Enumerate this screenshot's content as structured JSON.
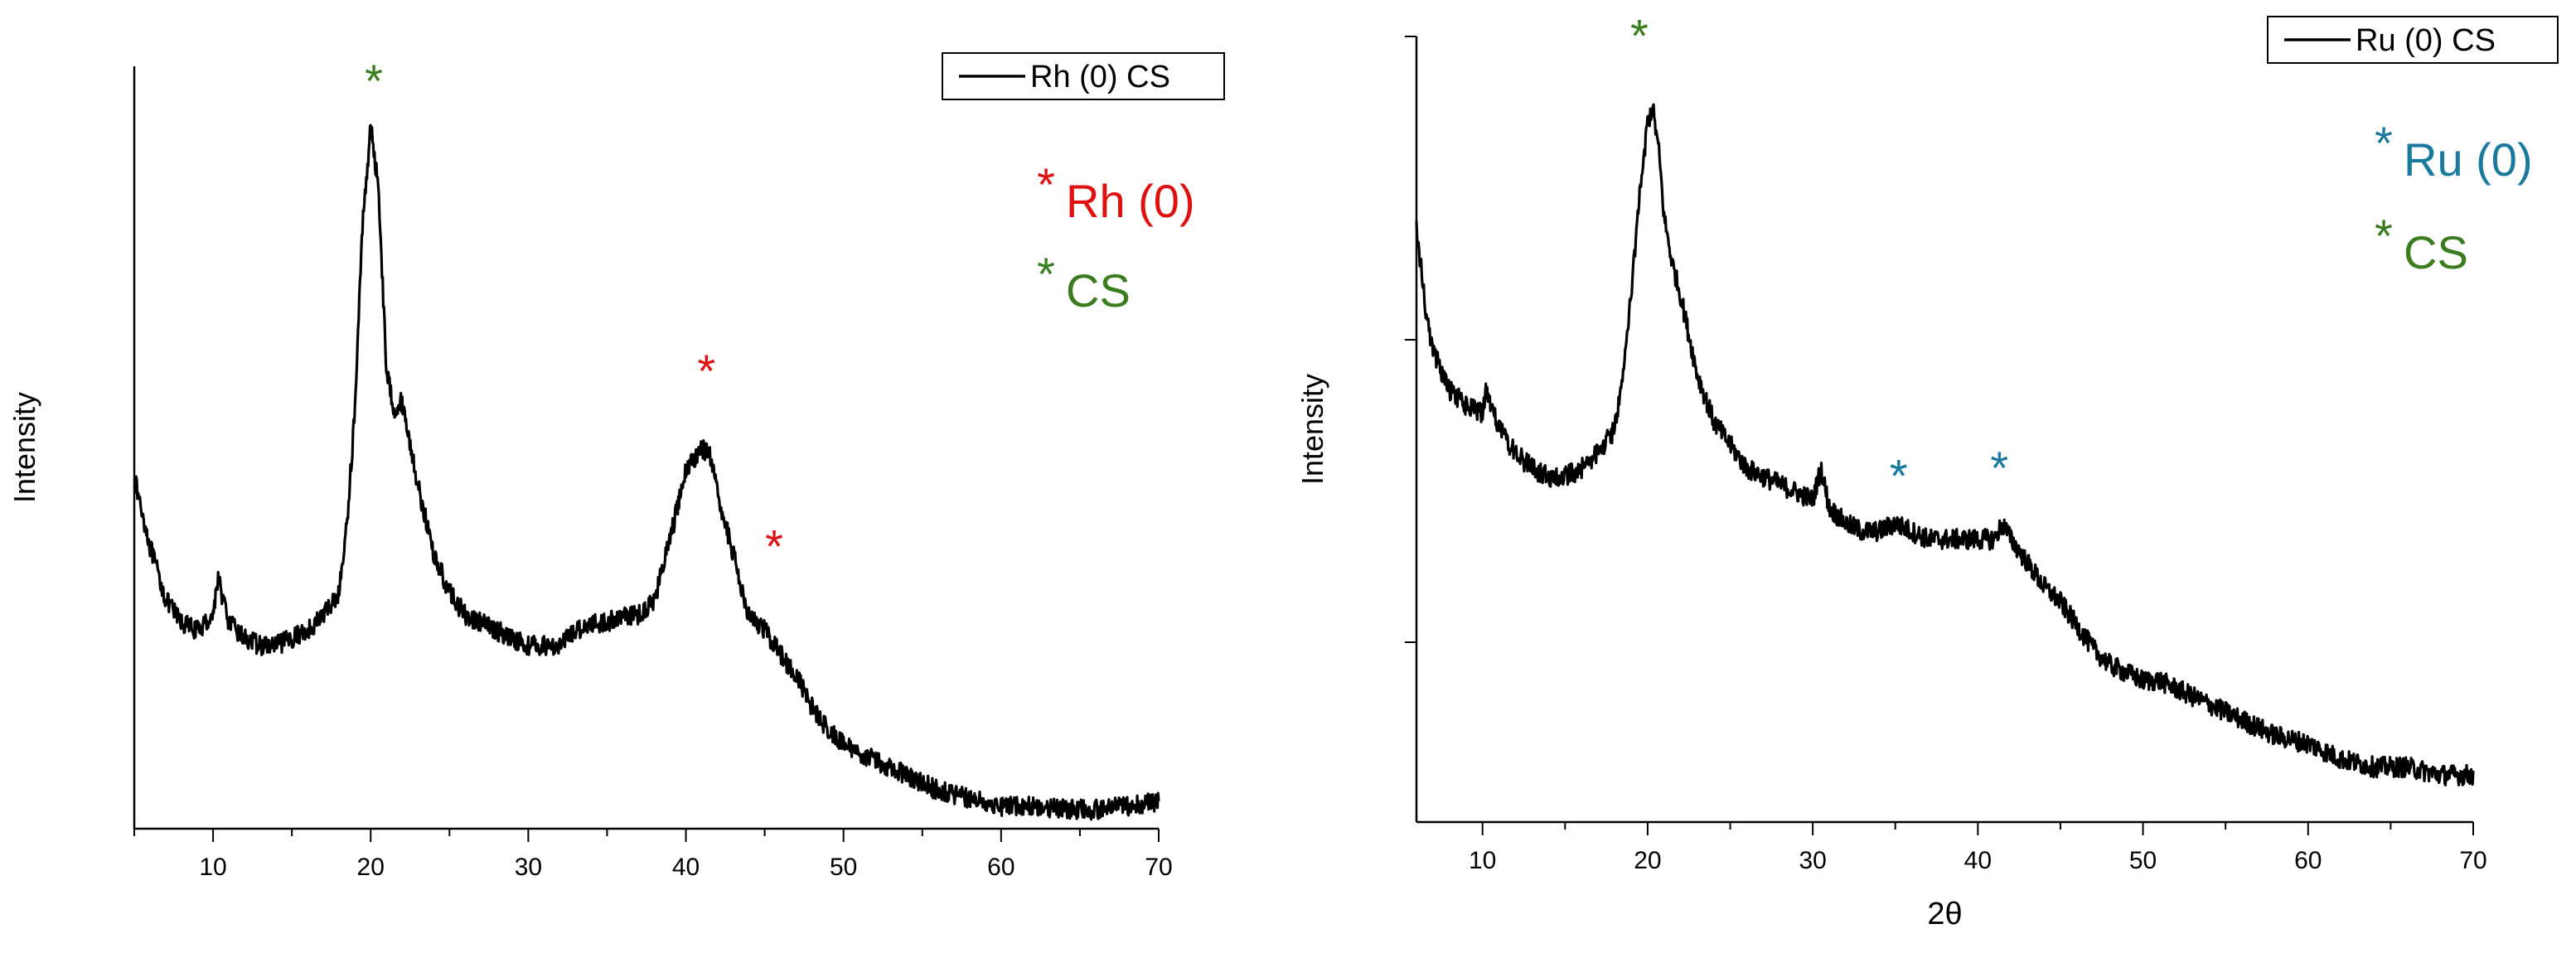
{
  "chart_data": [
    {
      "type": "line",
      "title": "",
      "xlabel": "",
      "ylabel": "Intensity",
      "xlim": [
        5,
        70
      ],
      "ylim": [
        0,
        100
      ],
      "xticks": [
        10,
        20,
        30,
        40,
        50,
        60,
        70
      ],
      "xtick_labels": [
        "10",
        "20",
        "30",
        "40",
        "50",
        "60",
        "70"
      ],
      "grid": false,
      "legend": {
        "position": "top-right",
        "entries": [
          "Rh (0) CS"
        ]
      },
      "series": [
        {
          "name": "Rh (0) CS",
          "color": "#000000",
          "x": [
            5,
            6,
            7,
            8,
            9,
            10,
            10.3,
            11,
            12,
            13,
            14,
            15,
            16,
            17,
            18,
            18.5,
            19,
            19.5,
            20,
            20.5,
            21,
            21.5,
            22,
            23,
            24,
            25,
            26,
            27,
            28,
            29,
            30,
            30.5,
            31,
            32,
            33,
            34,
            35,
            36,
            37,
            38,
            39,
            40,
            41,
            41.5,
            42,
            43,
            44,
            45,
            46,
            47,
            48,
            49,
            50,
            52,
            54,
            56,
            58,
            60,
            62,
            64,
            66,
            68,
            70
          ],
          "y": [
            46,
            37,
            30,
            27,
            26,
            28,
            33,
            27,
            25,
            24,
            24,
            25,
            26,
            28,
            31,
            40,
            55,
            80,
            92,
            84,
            60,
            55,
            56,
            45,
            36,
            31,
            28,
            27,
            26,
            25,
            24,
            24,
            24,
            24,
            26,
            27,
            27,
            28,
            28,
            30,
            38,
            47,
            50,
            49,
            44,
            36,
            28,
            26,
            23,
            20,
            16,
            13,
            11,
            9,
            7,
            5,
            4,
            3,
            3,
            2.5,
            2.5,
            3,
            3.5
          ]
        }
      ],
      "annotations": [
        {
          "text": "*",
          "x": 20.2,
          "y": 99,
          "color": "#3a7d1e"
        },
        {
          "text": "*",
          "x": 41.3,
          "y": 61,
          "color": "#e01010"
        },
        {
          "text": "*",
          "x": 45.6,
          "y": 38,
          "color": "#e01010"
        }
      ],
      "key": [
        {
          "star": "*",
          "label": "Rh (0)",
          "color": "#e01010"
        },
        {
          "star": "*",
          "label": "CS",
          "color": "#3a7d1e"
        }
      ]
    },
    {
      "type": "line",
      "title": "",
      "xlabel": "2θ",
      "ylabel": "Intensity",
      "xlim": [
        6,
        70
      ],
      "ylim": [
        0,
        100
      ],
      "xticks": [
        10,
        20,
        30,
        40,
        50,
        60,
        70
      ],
      "xtick_labels": [
        "10",
        "20",
        "30",
        "40",
        "50",
        "60",
        "70"
      ],
      "grid": false,
      "legend": {
        "position": "top-right",
        "entries": [
          "Ru (0) CS"
        ]
      },
      "series": [
        {
          "name": "Ru (0) CS",
          "color": "#000000",
          "x": [
            6,
            6.5,
            7,
            8,
            9,
            10,
            10.2,
            11,
            12,
            13,
            14,
            15,
            16,
            17,
            18,
            18.5,
            19,
            19.5,
            20,
            20.3,
            20.7,
            21,
            21.5,
            22,
            23,
            24,
            25,
            26,
            27,
            28,
            29,
            30,
            30.5,
            31,
            32,
            33,
            34,
            35,
            36,
            37,
            38,
            39,
            40,
            41,
            41.5,
            42,
            43,
            44,
            45,
            46,
            47,
            48,
            49,
            50,
            51,
            52,
            54,
            56,
            58,
            60,
            62,
            64,
            66,
            68,
            70
          ],
          "y": [
            76,
            66,
            60,
            55,
            53,
            52,
            55,
            50,
            47,
            45,
            44,
            44,
            45,
            47,
            50,
            57,
            67,
            80,
            89,
            91,
            85,
            77,
            71,
            67,
            57,
            51,
            48,
            45,
            44,
            43,
            42,
            41,
            45,
            40,
            38,
            37,
            37,
            38,
            37,
            36,
            36,
            36,
            36,
            36,
            38,
            36,
            33,
            30,
            28,
            25,
            22,
            20,
            19,
            18,
            18,
            17,
            15,
            13,
            11,
            10,
            8,
            7,
            7,
            6,
            6
          ]
        }
      ],
      "annotations": [
        {
          "text": "*",
          "x": 19.5,
          "y": 101,
          "color": "#3a7d1e"
        },
        {
          "text": "*",
          "x": 35.2,
          "y": 45,
          "color": "#1a7a9e"
        },
        {
          "text": "*",
          "x": 41.3,
          "y": 46,
          "color": "#1a7a9e"
        }
      ],
      "key": [
        {
          "star": "*",
          "label": "Ru (0)",
          "color": "#1a7a9e"
        },
        {
          "star": "*",
          "label": "CS",
          "color": "#3a7d1e"
        }
      ]
    }
  ]
}
